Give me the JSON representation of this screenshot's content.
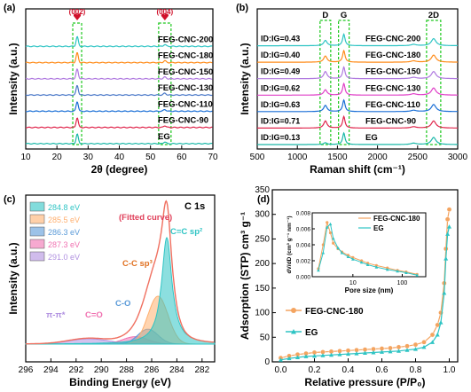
{
  "chart_data": [
    {
      "panel": "(a)",
      "type": "line",
      "xlabel": "2θ (degree)",
      "ylabel": "Intensity (a.u.)",
      "xlim": [
        10,
        70
      ],
      "xticks": [
        "10",
        "20",
        "30",
        "40",
        "50",
        "60",
        "70"
      ],
      "peak_labels": [
        "(002)",
        "(004)"
      ],
      "peaks_x": [
        26.5,
        54.6
      ],
      "series": [
        {
          "name": "FEG-CNC-200",
          "color": "#2ec4c4"
        },
        {
          "name": "FEG-CNC-180",
          "color": "#ff8c1a"
        },
        {
          "name": "FEG-CNC-150",
          "color": "#b07ae0"
        },
        {
          "name": "FEG-CNC-130",
          "color": "#4a78c8"
        },
        {
          "name": "FEG-CNC-110",
          "color": "#1a6fd6"
        },
        {
          "name": "FEG-CNC-90",
          "color": "#e0264c"
        },
        {
          "name": "EG",
          "color": "#1ab8a8"
        }
      ]
    },
    {
      "panel": "(b)",
      "type": "line",
      "xlabel": "Raman shift (cm⁻¹)",
      "ylabel": "Intensity (a.u.)",
      "xlim": [
        500,
        3000
      ],
      "xticks": [
        "500",
        "1000",
        "1500",
        "2000",
        "2500",
        "3000"
      ],
      "band_labels": [
        "D",
        "G",
        "2D"
      ],
      "bands_x": [
        1350,
        1580,
        2700
      ],
      "series": [
        {
          "name": "FEG-CNC-200",
          "ratio": "ID:IG=0.43",
          "color": "#2ec4c4"
        },
        {
          "name": "FEG-CNC-180",
          "ratio": "ID:IG=0.40",
          "color": "#ff8c1a"
        },
        {
          "name": "FEG-CNC-150",
          "ratio": "ID:IG=0.49",
          "color": "#b07ae0"
        },
        {
          "name": "FEG-CNC-130",
          "ratio": "ID:IG=0.62",
          "color": "#e040c8"
        },
        {
          "name": "FEG-CNC-110",
          "ratio": "ID:IG=0.63",
          "color": "#1a6fd6"
        },
        {
          "name": "FEG-CNC-90",
          "ratio": "ID:IG=0.71",
          "color": "#e0264c"
        },
        {
          "name": "EG",
          "ratio": "ID:IG=0.13",
          "color": "#1ab8a8"
        }
      ]
    },
    {
      "panel": "(c)",
      "type": "area",
      "title": "C 1s",
      "xlabel": "Binding Energy (eV)",
      "ylabel": "Intensity (a.u.)",
      "xlim": [
        296,
        281
      ],
      "xticks": [
        "296",
        "294",
        "292",
        "290",
        "288",
        "286",
        "284",
        "282"
      ],
      "fitted_label": "(Fitted curve)",
      "components": [
        {
          "name": "284.8 eV",
          "label": "C=C sp²",
          "center": 284.8,
          "height": 1.0,
          "color": "#2ec4c4"
        },
        {
          "name": "285.5 eV",
          "label": "C-C sp³",
          "center": 285.5,
          "height": 0.45,
          "color": "#ffb070"
        },
        {
          "name": "286.3 eV",
          "label": "C-O",
          "center": 286.3,
          "height": 0.14,
          "color": "#5a9ad8"
        },
        {
          "name": "287.3 eV",
          "label": "C=O",
          "center": 287.3,
          "height": 0.07,
          "color": "#f070b0"
        },
        {
          "name": "291.0 eV",
          "label": "π-π*",
          "center": 291.0,
          "height": 0.05,
          "color": "#b090e0"
        }
      ]
    },
    {
      "panel": "(d)",
      "type": "line",
      "xlabel": "Relative pressure (P/P₀)",
      "ylabel": "Adsorption (STP) cm³ g⁻¹",
      "xlim": [
        -0.05,
        1.05
      ],
      "ylim": [
        0,
        350
      ],
      "xticks": [
        "0.0",
        "0.2",
        "0.4",
        "0.6",
        "0.8",
        "1.0"
      ],
      "yticks": [
        "0",
        "50",
        "100",
        "150",
        "200",
        "250",
        "300",
        "350"
      ],
      "series": [
        {
          "name": "FEG-CNC-180",
          "color": "#f4a460",
          "x": [
            0.0,
            0.05,
            0.1,
            0.15,
            0.2,
            0.25,
            0.3,
            0.35,
            0.4,
            0.45,
            0.5,
            0.55,
            0.6,
            0.65,
            0.7,
            0.75,
            0.8,
            0.85,
            0.9,
            0.93,
            0.95,
            0.97,
            0.98,
            0.99,
            1.0
          ],
          "y": [
            8,
            12,
            15,
            17,
            19,
            20,
            21,
            22,
            23,
            24,
            25,
            26,
            27,
            28,
            30,
            32,
            35,
            40,
            55,
            75,
            100,
            160,
            230,
            290,
            310
          ]
        },
        {
          "name": "EG",
          "color": "#2ec4c4",
          "x": [
            0.0,
            0.05,
            0.1,
            0.15,
            0.2,
            0.25,
            0.3,
            0.35,
            0.4,
            0.45,
            0.5,
            0.55,
            0.6,
            0.65,
            0.7,
            0.75,
            0.8,
            0.85,
            0.9,
            0.93,
            0.95,
            0.97,
            0.98,
            0.99,
            1.0
          ],
          "y": [
            4,
            7,
            9,
            11,
            12,
            13,
            14,
            15,
            16,
            17,
            18,
            19,
            20,
            21,
            22,
            24,
            26,
            30,
            40,
            55,
            80,
            140,
            210,
            260,
            275
          ]
        }
      ],
      "inset": {
        "xlabel": "Pore size (nm)",
        "ylabel": "dV/dD (cm³ g⁻¹ nm⁻¹)",
        "xscale": "log",
        "xticks": [
          "10",
          "100"
        ],
        "yticks": [
          "0.000",
          "0.002",
          "0.004",
          "0.006",
          "0.008"
        ],
        "ylim": [
          0,
          0.008
        ],
        "series": [
          {
            "name": "FEG-CNC-180",
            "color": "#f4a460",
            "x": [
              2,
              2.5,
              3,
              3.5,
              4,
              5,
              6,
              8,
              10,
              15,
              20,
              30,
              50,
              80,
              120,
              200
            ],
            "y": [
              0.001,
              0.004,
              0.0068,
              0.0055,
              0.0042,
              0.0035,
              0.0031,
              0.0027,
              0.0024,
              0.002,
              0.0017,
              0.0014,
              0.0011,
              0.0008,
              0.0006,
              0.0003
            ]
          },
          {
            "name": "EG",
            "color": "#2ec4c4",
            "x": [
              2,
              2.5,
              3,
              3.5,
              4,
              5,
              6,
              8,
              10,
              15,
              20,
              30,
              50,
              80,
              120,
              200
            ],
            "y": [
              0.0008,
              0.003,
              0.0062,
              0.0066,
              0.0048,
              0.0036,
              0.003,
              0.0025,
              0.0022,
              0.0018,
              0.0015,
              0.0012,
              0.0009,
              0.0007,
              0.0005,
              0.0002
            ]
          }
        ]
      }
    }
  ]
}
